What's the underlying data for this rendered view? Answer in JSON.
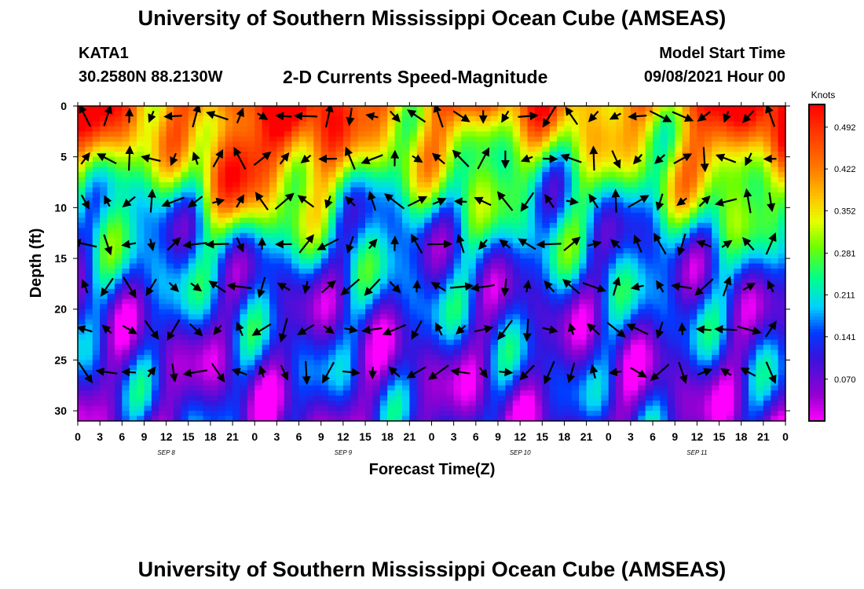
{
  "header": {
    "title": "University of Southern Mississippi Ocean Cube (AMSEAS)",
    "station": "KATA1",
    "coords": "30.2580N  88.2130W",
    "product": "2-D Currents Speed-Magnitude",
    "start_label": "Model Start Time",
    "start_value": "09/08/2021 Hour 00"
  },
  "footer": {
    "title": "University of Southern Mississippi Ocean Cube (AMSEAS)"
  },
  "chart_data": {
    "type": "heatmap",
    "title": "2-D Currents Speed-Magnitude",
    "xlabel": "Forecast Time(Z)",
    "ylabel": "Depth (ft)",
    "x_ticks": [
      "0",
      "3",
      "6",
      "9",
      "12",
      "15",
      "18",
      "21",
      "0",
      "3",
      "6",
      "9",
      "12",
      "15",
      "18",
      "21",
      "0",
      "3",
      "6",
      "9",
      "12",
      "15",
      "18",
      "21",
      "0",
      "3",
      "6",
      "9",
      "12",
      "15",
      "18",
      "21",
      "0"
    ],
    "x_range_hours": [
      0,
      96
    ],
    "day_labels": [
      {
        "label": "SEP 8",
        "hour": 12
      },
      {
        "label": "SEP 9",
        "hour": 36
      },
      {
        "label": "SEP 10",
        "hour": 60
      },
      {
        "label": "SEP 11",
        "hour": 84
      }
    ],
    "y_ticks": [
      0,
      5,
      10,
      15,
      20,
      25,
      30
    ],
    "ylim": [
      0,
      31
    ],
    "y_inverted": true,
    "colorbar": {
      "units": "Knots",
      "ticks": [
        "0.492",
        "0.422",
        "0.352",
        "0.281",
        "0.211",
        "0.141",
        "0.070"
      ],
      "range": [
        0,
        0.53
      ]
    },
    "grid": false,
    "surface_hotspots": [
      {
        "hour": 2,
        "depth": 3,
        "speed": 0.4
      },
      {
        "hour": 22,
        "depth": 6,
        "speed": 0.5
      },
      {
        "hour": 31,
        "depth": 4,
        "speed": 0.46
      },
      {
        "hour": 52,
        "depth": 3,
        "speed": 0.35
      },
      {
        "hour": 86,
        "depth": 5,
        "speed": 0.42
      },
      {
        "hour": 95,
        "depth": 2,
        "speed": 0.44
      }
    ]
  }
}
